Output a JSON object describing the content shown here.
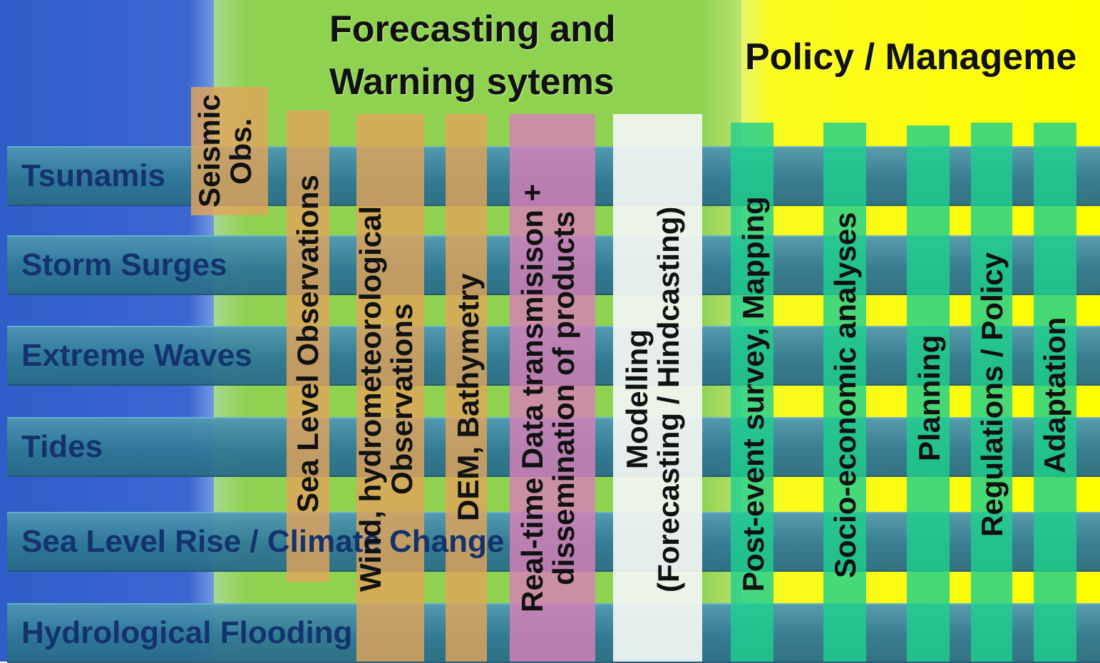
{
  "headers": {
    "forecasting": [
      "Forecasting and",
      "Warning sytems"
    ],
    "policy": "Policy / Manageme"
  },
  "hazards": [
    "Tsunamis",
    "Storm Surges",
    "Extreme Waves",
    "Tides",
    "Sea Level Rise / Climate Change",
    "Hydrological Flooding"
  ],
  "columns": {
    "seismic": [
      "Seismic",
      "Obs."
    ],
    "sea_level": "Sea Level Observations",
    "wind": [
      "Wind, hydrometeorological",
      "Observations"
    ],
    "dem": "DEM, Bathymetry",
    "realtime": [
      "Real-time Data transmisison +",
      "dissemination of products"
    ],
    "modelling": [
      "Modelling",
      "(Forecasting / Hindcasting)"
    ],
    "post_event": "Post-event survey, Mapping",
    "socio": "Socio-economic analyses",
    "planning": "Planning",
    "regulations": "Regulations / Policy",
    "adaptation": "Adaptation"
  },
  "colors": {
    "hazard_bar": "#2f7897",
    "hazard_text": "#14336e",
    "observation_orange": "#e0a55a",
    "transmission_pink": "#d880b8",
    "modelling_white": "#f4f6f4",
    "policy_teal": "#1fcf8e"
  }
}
